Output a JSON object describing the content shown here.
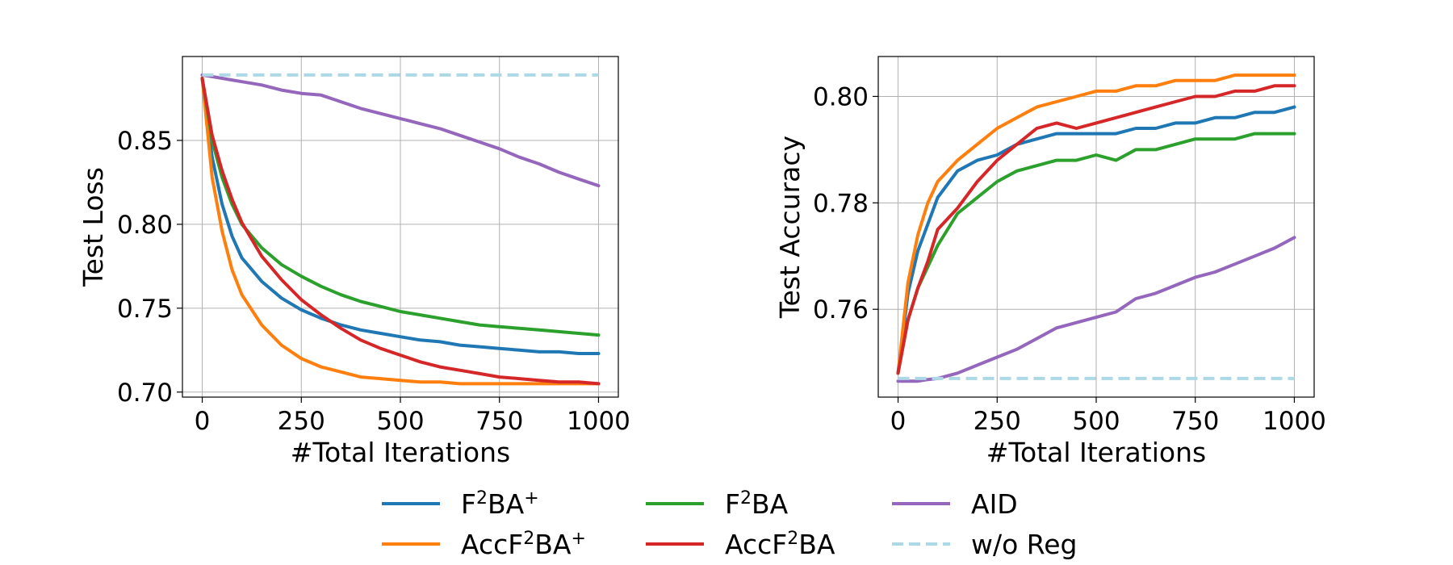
{
  "chart_data": [
    {
      "type": "line",
      "title": "",
      "xlabel": "#Total Iterations",
      "ylabel": "Test Loss",
      "xlim": [
        -50,
        1050
      ],
      "ylim": [
        0.697,
        0.9
      ],
      "xticks": [
        0,
        250,
        500,
        750,
        1000
      ],
      "xtick_labels": [
        "0",
        "250",
        "500",
        "750",
        "1000"
      ],
      "yticks": [
        0.7,
        0.75,
        0.8,
        0.85
      ],
      "ytick_labels": [
        "0.70",
        "0.75",
        "0.80",
        "0.85"
      ],
      "grid": true,
      "x": [
        0,
        25,
        50,
        75,
        100,
        150,
        200,
        250,
        300,
        350,
        400,
        450,
        500,
        550,
        600,
        650,
        700,
        750,
        800,
        850,
        900,
        950,
        1000
      ],
      "series": [
        {
          "name": "F$^2$BA$^+$",
          "color": "#1f77b4",
          "values": [
            0.887,
            0.84,
            0.812,
            0.793,
            0.78,
            0.766,
            0.756,
            0.749,
            0.744,
            0.74,
            0.737,
            0.735,
            0.733,
            0.731,
            0.73,
            0.728,
            0.727,
            0.726,
            0.725,
            0.724,
            0.724,
            0.723,
            0.723
          ]
        },
        {
          "name": "AccF$^2$BA$^+$",
          "color": "#ff7f0e",
          "values": [
            0.887,
            0.828,
            0.796,
            0.773,
            0.758,
            0.74,
            0.728,
            0.72,
            0.715,
            0.712,
            0.709,
            0.708,
            0.707,
            0.706,
            0.706,
            0.705,
            0.705,
            0.705,
            0.705,
            0.705,
            0.705,
            0.705,
            0.705
          ]
        },
        {
          "name": "F$^2$BA",
          "color": "#2ca02c",
          "values": [
            0.887,
            0.85,
            0.828,
            0.812,
            0.8,
            0.786,
            0.776,
            0.769,
            0.763,
            0.758,
            0.754,
            0.751,
            0.748,
            0.746,
            0.744,
            0.742,
            0.74,
            0.739,
            0.738,
            0.737,
            0.736,
            0.735,
            0.734
          ]
        },
        {
          "name": "AccF$^2$BA",
          "color": "#d62728",
          "values": [
            0.887,
            0.853,
            0.832,
            0.815,
            0.801,
            0.781,
            0.767,
            0.755,
            0.746,
            0.738,
            0.731,
            0.726,
            0.722,
            0.718,
            0.715,
            0.713,
            0.711,
            0.709,
            0.708,
            0.707,
            0.706,
            0.706,
            0.705
          ]
        },
        {
          "name": "AID",
          "color": "#9467bd",
          "values": [
            0.889,
            0.888,
            0.887,
            0.886,
            0.885,
            0.883,
            0.88,
            0.878,
            0.877,
            0.873,
            0.869,
            0.866,
            0.863,
            0.86,
            0.857,
            0.853,
            0.849,
            0.845,
            0.84,
            0.836,
            0.831,
            0.827,
            0.823
          ]
        },
        {
          "name": "w/o Reg",
          "color": "#add8e6",
          "dashed": true,
          "values": [
            0.889,
            0.889,
            0.889,
            0.889,
            0.889,
            0.889,
            0.889,
            0.889,
            0.889,
            0.889,
            0.889,
            0.889,
            0.889,
            0.889,
            0.889,
            0.889,
            0.889,
            0.889,
            0.889,
            0.889,
            0.889,
            0.889,
            0.889
          ]
        }
      ]
    },
    {
      "type": "line",
      "title": "",
      "xlabel": "#Total Iterations",
      "ylabel": "Test Accuracy",
      "xlim": [
        -50,
        1050
      ],
      "ylim": [
        0.7435,
        0.8075
      ],
      "xticks": [
        0,
        250,
        500,
        750,
        1000
      ],
      "xtick_labels": [
        "0",
        "250",
        "500",
        "750",
        "1000"
      ],
      "yticks": [
        0.76,
        0.78,
        0.8
      ],
      "ytick_labels": [
        "0.76",
        "0.78",
        "0.80"
      ],
      "grid": true,
      "x": [
        0,
        25,
        50,
        75,
        100,
        150,
        200,
        250,
        300,
        350,
        400,
        450,
        500,
        550,
        600,
        650,
        700,
        750,
        800,
        850,
        900,
        950,
        1000
      ],
      "series": [
        {
          "name": "F$^2$BA$^+$",
          "color": "#1f77b4",
          "values": [
            0.748,
            0.763,
            0.771,
            0.776,
            0.781,
            0.786,
            0.788,
            0.789,
            0.791,
            0.792,
            0.793,
            0.793,
            0.793,
            0.793,
            0.794,
            0.794,
            0.795,
            0.795,
            0.796,
            0.796,
            0.797,
            0.797,
            0.798
          ]
        },
        {
          "name": "AccF$^2$BA$^+$",
          "color": "#ff7f0e",
          "values": [
            0.748,
            0.765,
            0.774,
            0.78,
            0.784,
            0.788,
            0.791,
            0.794,
            0.796,
            0.798,
            0.799,
            0.8,
            0.801,
            0.801,
            0.802,
            0.802,
            0.803,
            0.803,
            0.803,
            0.804,
            0.804,
            0.804,
            0.804
          ]
        },
        {
          "name": "F$^2$BA",
          "color": "#2ca02c",
          "values": [
            0.748,
            0.758,
            0.764,
            0.768,
            0.772,
            0.778,
            0.781,
            0.784,
            0.786,
            0.787,
            0.788,
            0.788,
            0.789,
            0.788,
            0.79,
            0.79,
            0.791,
            0.792,
            0.792,
            0.792,
            0.793,
            0.793,
            0.793
          ]
        },
        {
          "name": "AccF$^2$BA",
          "color": "#d62728",
          "values": [
            0.748,
            0.758,
            0.764,
            0.769,
            0.775,
            0.779,
            0.784,
            0.788,
            0.791,
            0.794,
            0.795,
            0.794,
            0.795,
            0.796,
            0.797,
            0.798,
            0.799,
            0.8,
            0.8,
            0.801,
            0.801,
            0.802,
            0.802
          ]
        },
        {
          "name": "AID",
          "color": "#9467bd",
          "values": [
            0.7465,
            0.7465,
            0.7465,
            0.7468,
            0.747,
            0.748,
            0.7495,
            0.751,
            0.7525,
            0.7545,
            0.7565,
            0.7575,
            0.7585,
            0.7595,
            0.762,
            0.763,
            0.7645,
            0.766,
            0.767,
            0.7685,
            0.77,
            0.7715,
            0.7735
          ]
        },
        {
          "name": "w/o Reg",
          "color": "#add8e6",
          "dashed": true,
          "values": [
            0.747,
            0.747,
            0.747,
            0.747,
            0.747,
            0.747,
            0.747,
            0.747,
            0.747,
            0.747,
            0.747,
            0.747,
            0.747,
            0.747,
            0.747,
            0.747,
            0.747,
            0.747,
            0.747,
            0.747,
            0.747,
            0.747,
            0.747
          ]
        }
      ]
    }
  ],
  "legend": {
    "placement": "bottom-center",
    "entries": [
      {
        "base": "F",
        "sup1": "2",
        "mid": "BA",
        "sup2": "+",
        "color": "#1f77b4",
        "dashed": false
      },
      {
        "base": "AccF",
        "sup1": "2",
        "mid": "BA",
        "sup2": "+",
        "color": "#ff7f0e",
        "dashed": false
      },
      {
        "base": "F",
        "sup1": "2",
        "mid": "BA",
        "sup2": "",
        "color": "#2ca02c",
        "dashed": false
      },
      {
        "base": "AccF",
        "sup1": "2",
        "mid": "BA",
        "sup2": "",
        "color": "#d62728",
        "dashed": false
      },
      {
        "base": "AID",
        "sup1": "",
        "mid": "",
        "sup2": "",
        "color": "#9467bd",
        "dashed": false
      },
      {
        "base": "w/o Reg",
        "sup1": "",
        "mid": "",
        "sup2": "",
        "color": "#add8e6",
        "dashed": true
      }
    ]
  }
}
